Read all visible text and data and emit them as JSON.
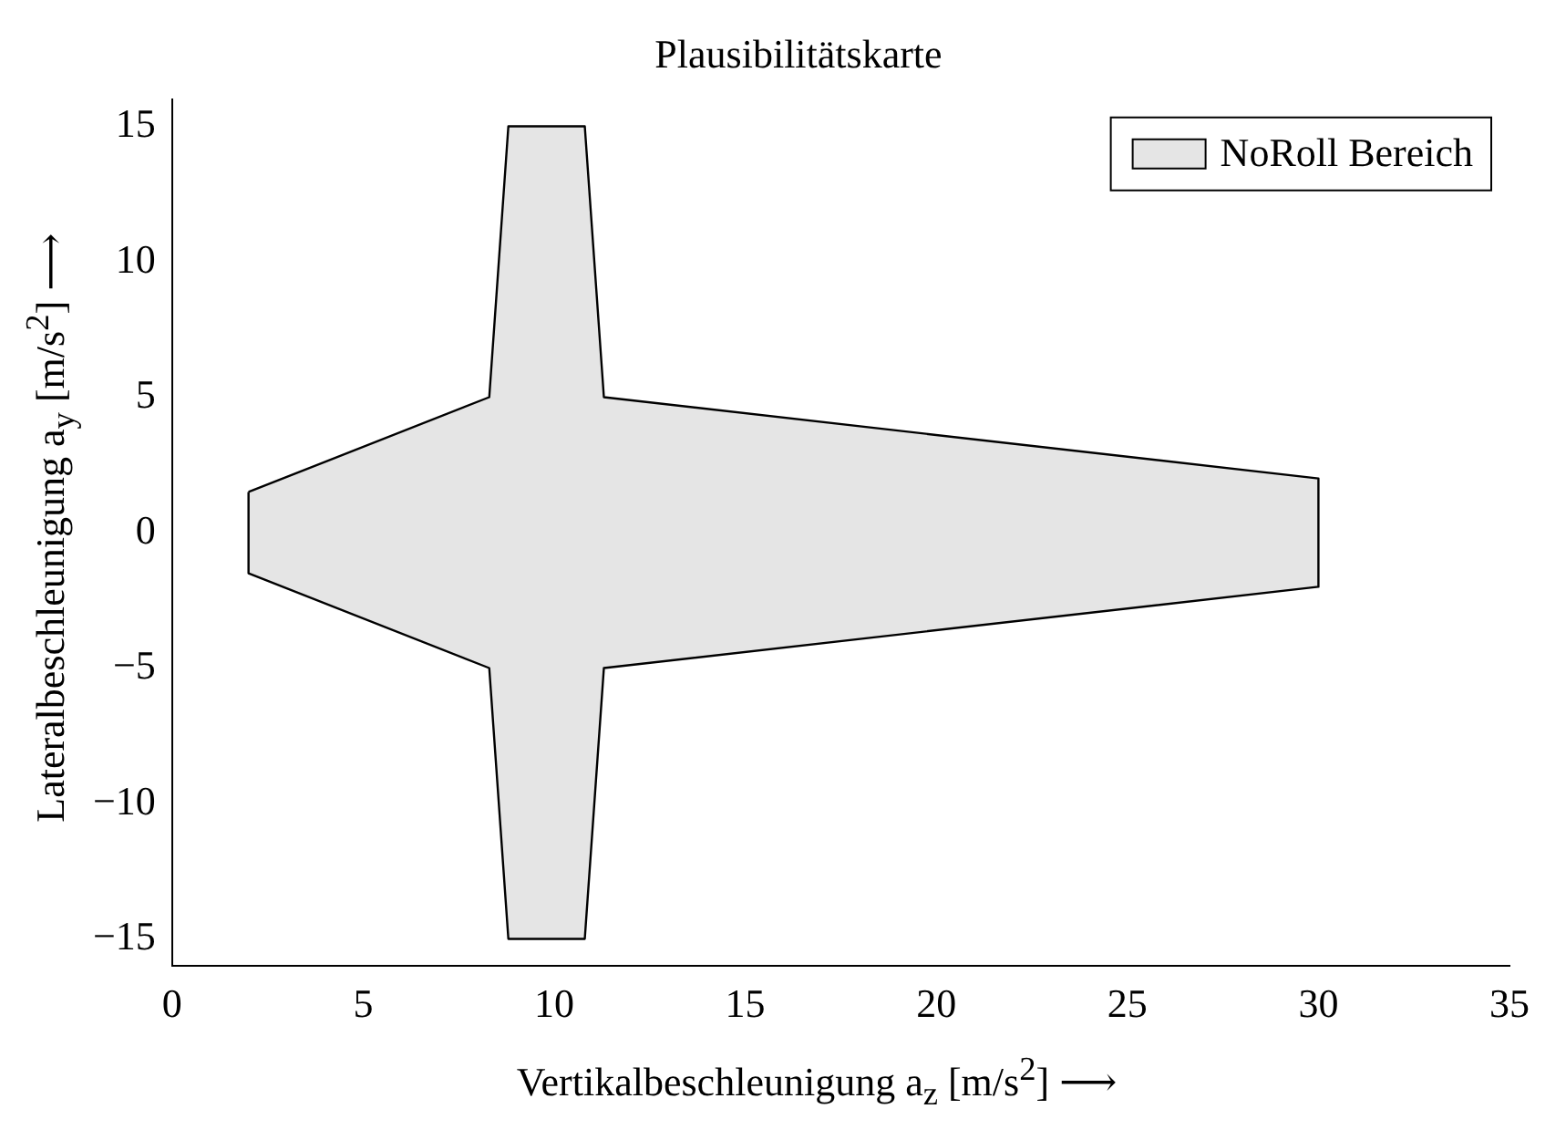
{
  "chart_data": {
    "type": "area",
    "title": "Plausibilitätskarte",
    "xlabel": "Vertikalbeschleunigung a$_{z}$ [m/s$^{2}$] ⟶",
    "ylabel": "Lateralbeschleunigung a$_{y}$ [m/s$^{2}$] ⟶",
    "x": [
      2,
      8.3,
      8.8,
      10.8,
      11.3,
      30,
      30,
      11.3,
      10.8,
      8.8,
      8.3,
      2,
      2
    ],
    "series": [
      {
        "name": "NoRoll Bereich",
        "color": "#e5e5e5",
        "values": [
          1.5,
          5,
          15,
          15,
          5,
          2,
          -2,
          -5,
          -15,
          -15,
          -5,
          -1.5,
          1.5
        ]
      }
    ],
    "xlim": [
      0,
      35
    ],
    "xticks": [
      0,
      5,
      10,
      15,
      20,
      25,
      30,
      35
    ],
    "ylim": [
      -16,
      16
    ],
    "yticks": [
      {
        "value": -15,
        "label": "−15"
      },
      {
        "value": -10,
        "label": "−10"
      },
      {
        "value": -5,
        "label": "−5"
      },
      0,
      5,
      10,
      15
    ],
    "grid": false,
    "legend": "top right"
  }
}
